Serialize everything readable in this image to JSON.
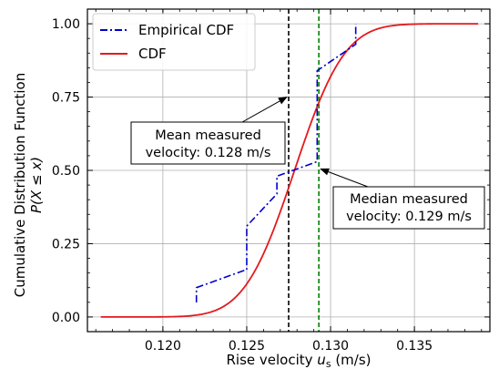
{
  "chart_data": {
    "type": "line",
    "title": "",
    "xlabel_main": "Rise velocity ",
    "xlabel_var": "u",
    "xlabel_sub": "s",
    "xlabel_unit": " (m/s)",
    "ylabel_line1": "Cumulative Distribution Function",
    "ylabel_line2": "P(X ≤ x)",
    "xlim": [
      0.1155,
      0.1395
    ],
    "ylim": [
      -0.05,
      1.05
    ],
    "x_ticks": [
      0.12,
      0.125,
      0.13,
      0.135
    ],
    "x_tick_labels": [
      "0.120",
      "0.125",
      "0.130",
      "0.135"
    ],
    "y_ticks": [
      0.0,
      0.25,
      0.5,
      0.75,
      1.0
    ],
    "y_tick_labels": [
      "0.00",
      "0.25",
      "0.50",
      "0.75",
      "1.00"
    ],
    "grid": true,
    "legend_position": "top-left",
    "series": [
      {
        "name": "Empirical CDF",
        "style": "dashdot",
        "color": "#0000cc",
        "x": [
          0.122,
          0.122,
          0.1249,
          0.125,
          0.125,
          0.1268,
          0.1268,
          0.1292,
          0.1292,
          0.1292,
          0.1315,
          0.1315
        ],
        "y": [
          0.05,
          0.1,
          0.16,
          0.16,
          0.31,
          0.42,
          0.48,
          0.53,
          0.58,
          0.84,
          0.93,
          1.0
        ]
      },
      {
        "name": "CDF",
        "style": "solid",
        "color": "#e41a1c",
        "distribution": "normal",
        "mean": 0.12785,
        "std": 0.00235,
        "x_range": [
          0.1163,
          0.1388
        ]
      }
    ],
    "vlines": [
      {
        "x": 0.1275,
        "color": "#000000",
        "style": "dashed",
        "meaning": "mean"
      },
      {
        "x": 0.1293,
        "color": "#008000",
        "style": "dashed",
        "meaning": "median"
      }
    ],
    "annotations": [
      {
        "id": "mean",
        "lines": [
          "Mean measured",
          "velocity: 0.128 m/s"
        ],
        "arrow_to": [
          0.1275,
          0.75
        ]
      },
      {
        "id": "median",
        "lines": [
          "Median measured",
          "velocity: 0.129 m/s"
        ],
        "arrow_to": [
          0.1293,
          0.505
        ]
      }
    ],
    "colors": {
      "empirical": "#0000cc",
      "cdf": "#e41a1c",
      "mean_line": "#000000",
      "median_line": "#008000",
      "grid": "#b0b0b0"
    }
  }
}
